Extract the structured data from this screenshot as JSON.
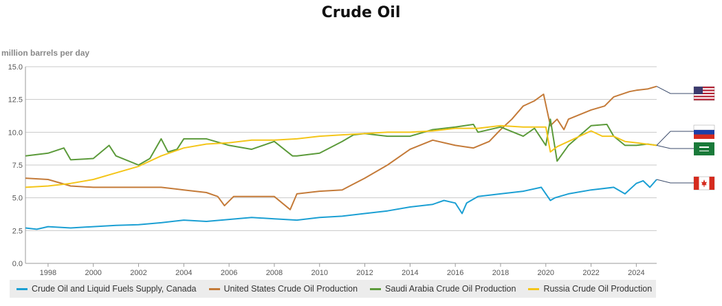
{
  "chart_data": {
    "type": "line",
    "title": "Crude Oil",
    "ylabel": "million barrels per day",
    "xlabel": "",
    "ylim": [
      0,
      15
    ],
    "xlim": [
      1997,
      2024.9
    ],
    "yticks": [
      "0.0",
      "2.5",
      "5.0",
      "7.5",
      "10.0",
      "12.5",
      "15.0"
    ],
    "xticks": [
      "1998",
      "2000",
      "2002",
      "2004",
      "2006",
      "2008",
      "2010",
      "2012",
      "2014",
      "2016",
      "2018",
      "2020",
      "2022",
      "2024"
    ],
    "series": [
      {
        "name": "Crude Oil and Liquid Fuels Supply, Canada",
        "color": "#1a9fd3",
        "flag": "canada-flag",
        "x": [
          1997,
          1997.5,
          1998,
          1999,
          2000,
          2001,
          2002,
          2003,
          2004,
          2005,
          2006,
          2007,
          2008,
          2009,
          2010,
          2011,
          2012,
          2013,
          2014,
          2015,
          2015.5,
          2016,
          2016.3,
          2016.5,
          2017,
          2018,
          2019,
          2019.8,
          2020.2,
          2020.4,
          2021,
          2022,
          2023,
          2023.5,
          2024,
          2024.3,
          2024.6,
          2024.9
        ],
        "values": [
          2.7,
          2.6,
          2.8,
          2.7,
          2.8,
          2.9,
          2.95,
          3.1,
          3.3,
          3.2,
          3.35,
          3.5,
          3.4,
          3.3,
          3.5,
          3.6,
          3.8,
          4.0,
          4.3,
          4.5,
          4.8,
          4.6,
          3.8,
          4.6,
          5.1,
          5.3,
          5.5,
          5.8,
          4.8,
          5.0,
          5.3,
          5.6,
          5.8,
          5.3,
          6.1,
          6.3,
          5.8,
          6.4
        ]
      },
      {
        "name": "United States Crude Oil Production",
        "color": "#c47a38",
        "flag": "usa-flag",
        "x": [
          1997,
          1998,
          1999,
          2000,
          2001,
          2002,
          2003,
          2004,
          2005,
          2005.5,
          2005.8,
          2006.2,
          2007,
          2008,
          2008.7,
          2009,
          2010,
          2011,
          2012,
          2013,
          2014,
          2015,
          2016,
          2016.8,
          2017.5,
          2018,
          2018.5,
          2019,
          2019.5,
          2019.9,
          2020.2,
          2020.5,
          2020.8,
          2021,
          2022,
          2022.6,
          2023,
          2023.7,
          2024,
          2024.5,
          2024.9
        ],
        "values": [
          6.5,
          6.4,
          5.9,
          5.8,
          5.8,
          5.8,
          5.8,
          5.6,
          5.4,
          5.1,
          4.4,
          5.1,
          5.1,
          5.1,
          4.1,
          5.3,
          5.5,
          5.6,
          6.5,
          7.5,
          8.7,
          9.4,
          9.0,
          8.8,
          9.3,
          10.2,
          11.0,
          12.0,
          12.4,
          12.9,
          10.5,
          11.0,
          10.2,
          11.0,
          11.7,
          12.0,
          12.7,
          13.1,
          13.2,
          13.3,
          13.5
        ]
      },
      {
        "name": "Saudi Arabia Crude Oil Production",
        "color": "#5b9a3a",
        "flag": "saudi-arabia-flag",
        "x": [
          1997,
          1998,
          1998.7,
          1999,
          2000,
          2000.7,
          2001,
          2002,
          2002.5,
          2003,
          2003.3,
          2003.7,
          2004,
          2005,
          2006,
          2007,
          2008,
          2008.8,
          2009,
          2010,
          2011,
          2011.5,
          2012,
          2013,
          2014,
          2015,
          2016,
          2016.8,
          2017,
          2018,
          2019,
          2019.5,
          2020,
          2020.2,
          2020.5,
          2021,
          2022,
          2022.7,
          2023,
          2023.5,
          2024,
          2024.5,
          2024.9
        ],
        "values": [
          8.2,
          8.4,
          8.8,
          7.9,
          8.0,
          9.0,
          8.2,
          7.5,
          8.0,
          9.5,
          8.5,
          8.7,
          9.5,
          9.5,
          9.0,
          8.7,
          9.3,
          8.2,
          8.2,
          8.4,
          9.3,
          9.8,
          9.9,
          9.7,
          9.7,
          10.2,
          10.4,
          10.6,
          10.0,
          10.4,
          9.7,
          10.3,
          9.0,
          11.0,
          7.8,
          9.0,
          10.5,
          10.6,
          9.7,
          9.0,
          9.0,
          9.1,
          9.0
        ]
      },
      {
        "name": "Russia Crude Oil Production",
        "color": "#f4c518",
        "flag": "russia-flag",
        "x": [
          1997,
          1998,
          1999,
          2000,
          2001,
          2002,
          2003,
          2004,
          2005,
          2006,
          2007,
          2008,
          2009,
          2010,
          2011,
          2012,
          2013,
          2014,
          2015,
          2016,
          2017,
          2018,
          2019,
          2020,
          2020.2,
          2020.5,
          2021,
          2022,
          2022.5,
          2023,
          2023.5,
          2024,
          2024.9
        ],
        "values": [
          5.8,
          5.9,
          6.1,
          6.4,
          6.9,
          7.4,
          8.2,
          8.8,
          9.1,
          9.2,
          9.4,
          9.4,
          9.5,
          9.7,
          9.8,
          9.9,
          10.0,
          10.0,
          10.1,
          10.3,
          10.3,
          10.5,
          10.4,
          10.4,
          8.5,
          8.9,
          9.3,
          10.1,
          9.7,
          9.7,
          9.3,
          9.2,
          9.0
        ]
      }
    ]
  }
}
